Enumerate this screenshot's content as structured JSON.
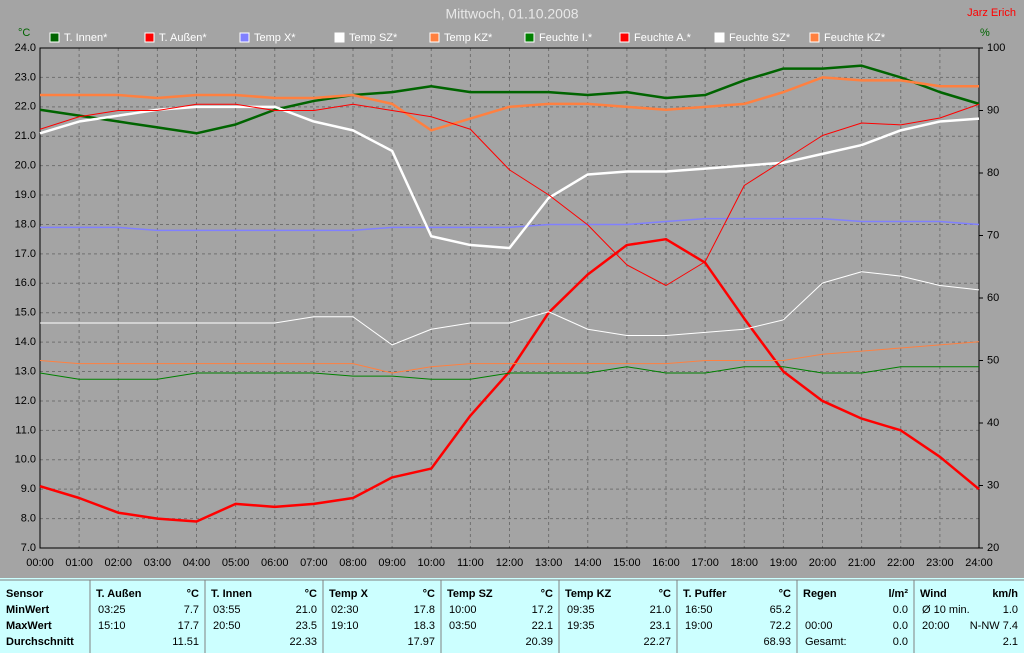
{
  "chart_data": {
    "type": "line",
    "title": "Mittwoch, 01.10.2008",
    "author": "Jarz Erich",
    "y_label": "°C",
    "y2_label": "%",
    "grid": true,
    "x": [
      0,
      1,
      2,
      3,
      4,
      5,
      6,
      7,
      8,
      9,
      10,
      11,
      12,
      13,
      14,
      15,
      16,
      17,
      18,
      19,
      20,
      21,
      22,
      23,
      24
    ],
    "xlim": [
      0,
      24
    ],
    "xticks": [
      {
        "value": 0,
        "label": "00:00"
      },
      {
        "value": 1,
        "label": "01:00"
      },
      {
        "value": 2,
        "label": "02:00"
      },
      {
        "value": 3,
        "label": "03:00"
      },
      {
        "value": 4,
        "label": "04:00"
      },
      {
        "value": 5,
        "label": "05:00"
      },
      {
        "value": 6,
        "label": "06:00"
      },
      {
        "value": 7,
        "label": "07:00"
      },
      {
        "value": 8,
        "label": "08:00"
      },
      {
        "value": 9,
        "label": "09:00"
      },
      {
        "value": 10,
        "label": "10:00"
      },
      {
        "value": 11,
        "label": "11:00"
      },
      {
        "value": 12,
        "label": "12:00"
      },
      {
        "value": 13,
        "label": "13:00"
      },
      {
        "value": 14,
        "label": "14:00"
      },
      {
        "value": 15,
        "label": "15:00"
      },
      {
        "value": 16,
        "label": "16:00"
      },
      {
        "value": 17,
        "label": "17:00"
      },
      {
        "value": 18,
        "label": "18:00"
      },
      {
        "value": 19,
        "label": "19:00"
      },
      {
        "value": 20,
        "label": "20:00"
      },
      {
        "value": 21,
        "label": "21:00"
      },
      {
        "value": 22,
        "label": "22:00"
      },
      {
        "value": 23,
        "label": "23:00"
      },
      {
        "value": 24,
        "label": "24:00"
      }
    ],
    "ylim": [
      7,
      24
    ],
    "yticks": [
      {
        "value": 7,
        "label": "7.0"
      },
      {
        "value": 8,
        "label": "8.0"
      },
      {
        "value": 9,
        "label": "9.0"
      },
      {
        "value": 10,
        "label": "10.0"
      },
      {
        "value": 11,
        "label": "11.0"
      },
      {
        "value": 12,
        "label": "12.0"
      },
      {
        "value": 13,
        "label": "13.0"
      },
      {
        "value": 14,
        "label": "14.0"
      },
      {
        "value": 15,
        "label": "15.0"
      },
      {
        "value": 16,
        "label": "16.0"
      },
      {
        "value": 17,
        "label": "17.0"
      },
      {
        "value": 18,
        "label": "18.0"
      },
      {
        "value": 19,
        "label": "19.0"
      },
      {
        "value": 20,
        "label": "20.0"
      },
      {
        "value": 21,
        "label": "21.0"
      },
      {
        "value": 22,
        "label": "22.0"
      },
      {
        "value": 23,
        "label": "23.0"
      },
      {
        "value": 24,
        "label": "24.0"
      }
    ],
    "y2lim": [
      20,
      100
    ],
    "y2ticks": [
      20,
      30,
      40,
      50,
      60,
      70,
      80,
      90,
      100
    ],
    "series": [
      {
        "name": "T. Innen*",
        "color": "#006400",
        "values": [
          21.9,
          21.7,
          21.5,
          21.3,
          21.1,
          21.4,
          21.9,
          22.2,
          22.4,
          22.5,
          22.7,
          22.5,
          22.5,
          22.5,
          22.4,
          22.5,
          22.3,
          22.4,
          22.9,
          23.3,
          23.3,
          23.4,
          23.0,
          22.5,
          22.1
        ]
      },
      {
        "name": "T. Außen*",
        "color": "#ff0000",
        "values": [
          9.1,
          8.7,
          8.2,
          8.0,
          7.9,
          8.5,
          8.4,
          8.5,
          8.7,
          9.4,
          9.7,
          11.5,
          13.0,
          15.0,
          16.3,
          17.3,
          17.5,
          16.7,
          14.8,
          13.0,
          12.0,
          11.4,
          11.0,
          10.1,
          9.0
        ]
      },
      {
        "name": "Temp X*",
        "color": "#8080ff",
        "values": [
          17.9,
          17.9,
          17.9,
          17.8,
          17.8,
          17.8,
          17.8,
          17.8,
          17.8,
          17.9,
          17.9,
          17.9,
          17.9,
          18.0,
          18.0,
          18.0,
          18.1,
          18.2,
          18.2,
          18.2,
          18.2,
          18.1,
          18.1,
          18.1,
          18.0
        ]
      },
      {
        "name": "Temp SZ*",
        "color": "#ffffff",
        "values": [
          21.1,
          21.5,
          21.7,
          21.9,
          22.0,
          22.0,
          22.0,
          21.5,
          21.2,
          20.5,
          17.6,
          17.3,
          17.2,
          18.9,
          19.7,
          19.8,
          19.8,
          19.9,
          20.0,
          20.1,
          20.4,
          20.7,
          21.2,
          21.5,
          21.6
        ]
      },
      {
        "name": "Temp KZ*",
        "color": "#ff8040",
        "values": [
          22.4,
          22.4,
          22.4,
          22.3,
          22.4,
          22.4,
          22.3,
          22.3,
          22.4,
          22.1,
          21.2,
          21.6,
          22.0,
          22.1,
          22.1,
          22.0,
          21.9,
          22.0,
          22.1,
          22.5,
          23.0,
          22.9,
          22.9,
          22.7,
          22.7
        ]
      },
      {
        "name": "Feuchte I.*",
        "color": "#008000",
        "axis": "y2",
        "values": [
          48,
          47,
          47,
          47,
          48,
          48,
          48,
          48,
          47.5,
          47.5,
          47,
          47,
          48,
          48,
          48,
          49,
          48,
          48,
          49,
          49,
          48,
          48,
          49,
          49,
          49
        ]
      },
      {
        "name": "Feuchte A.*",
        "color": "#ff0000",
        "axis": "y2",
        "values": [
          87,
          89,
          90,
          90,
          91,
          91,
          90,
          90,
          91,
          90,
          89,
          87,
          80.5,
          76.5,
          71.7,
          65.3,
          62,
          65.8,
          78,
          82,
          86,
          88,
          87.7,
          88.8,
          91
        ]
      },
      {
        "name": "Feuchte SZ*",
        "color": "#ffffff",
        "axis": "y2",
        "values": [
          56,
          56,
          56,
          56,
          56,
          56,
          56,
          57,
          57,
          52.5,
          55,
          56,
          56,
          57.8,
          55,
          54,
          54,
          54.5,
          55,
          56.5,
          62.4,
          64.2,
          63.5,
          62,
          61.3
        ]
      },
      {
        "name": "Feuchte KZ*",
        "color": "#ff8040",
        "axis": "y2",
        "values": [
          50,
          49.5,
          49.5,
          49.5,
          49.5,
          49.5,
          49.5,
          49.5,
          49.5,
          48,
          49,
          49.5,
          49.5,
          49.5,
          49.5,
          49.5,
          49.5,
          50,
          50,
          50,
          51,
          51.5,
          52,
          52.5,
          53
        ]
      }
    ]
  },
  "table": {
    "corner": "Sensor",
    "row_labels": [
      "MinWert",
      "MaxWert",
      "Durchschnitt"
    ],
    "columns": [
      {
        "name": "T. Außen",
        "unit": "°C",
        "cells": [
          [
            "03:25",
            "7.7"
          ],
          [
            "15:10",
            "17.7"
          ],
          [
            "11.51"
          ]
        ]
      },
      {
        "name": "T. Innen",
        "unit": "°C",
        "cells": [
          [
            "03:55",
            "21.0"
          ],
          [
            "20:50",
            "23.5"
          ],
          [
            "22.33"
          ]
        ]
      },
      {
        "name": "Temp X",
        "unit": "°C",
        "cells": [
          [
            "02:30",
            "17.8"
          ],
          [
            "19:10",
            "18.3"
          ],
          [
            "17.97"
          ]
        ]
      },
      {
        "name": "Temp SZ",
        "unit": "°C",
        "cells": [
          [
            "10:00",
            "17.2"
          ],
          [
            "03:50",
            "22.1"
          ],
          [
            "20.39"
          ]
        ]
      },
      {
        "name": "Temp KZ",
        "unit": "°C",
        "cells": [
          [
            "09:35",
            "21.0"
          ],
          [
            "19:35",
            "23.1"
          ],
          [
            "22.27"
          ]
        ]
      },
      {
        "name": "T. Puffer",
        "unit": "°C",
        "cells": [
          [
            "16:50",
            "65.2"
          ],
          [
            "19:00",
            "72.2"
          ],
          [
            "68.93"
          ]
        ]
      },
      {
        "name": "Regen",
        "unit": "l/m²",
        "cells": [
          [
            "0.0"
          ],
          [
            "00:00",
            "0.0"
          ],
          [
            "Gesamt:",
            "0.0"
          ]
        ]
      },
      {
        "name": "Wind",
        "unit": "km/h",
        "cells": [
          [
            "Ø 10 min.",
            "1.0"
          ],
          [
            "20:00",
            "N-NW 7.4"
          ],
          [
            "2.1"
          ]
        ]
      }
    ]
  }
}
